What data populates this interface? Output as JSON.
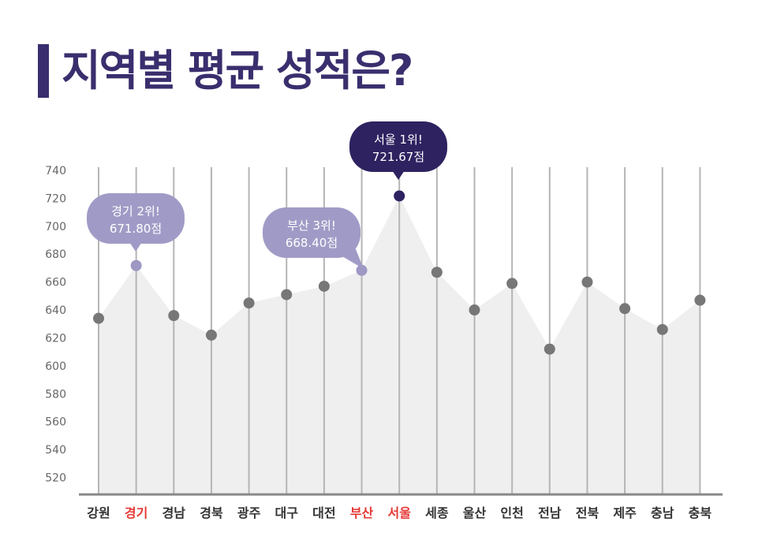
{
  "title": "지역별 평균 성적은?",
  "chart_data": {
    "type": "area",
    "title": "지역별 평균 성적은?",
    "xlabel": "",
    "ylabel": "",
    "ylim": [
      510,
      740
    ],
    "yticks": [
      740,
      720,
      700,
      680,
      660,
      640,
      620,
      600,
      580,
      560,
      540,
      520
    ],
    "categories": [
      "강원",
      "경기",
      "경남",
      "경북",
      "광주",
      "대구",
      "대전",
      "부산",
      "서울",
      "세종",
      "울산",
      "인천",
      "전남",
      "전북",
      "제주",
      "충남",
      "충북"
    ],
    "values": [
      634,
      671.8,
      636,
      622,
      645,
      651,
      657,
      668.4,
      721.67,
      667,
      640,
      659,
      612,
      660,
      641,
      626,
      647
    ],
    "highlighted_categories": [
      "경기",
      "부산",
      "서울"
    ],
    "annotations": [
      {
        "category": "서울",
        "line1": "서울 1위!",
        "line2": "721.67점"
      },
      {
        "category": "경기",
        "line1": "경기 2위!",
        "line2": "671.80점"
      },
      {
        "category": "부산",
        "line1": "부산 3위!",
        "line2": "668.40점"
      }
    ],
    "colors": {
      "area": "#efefef",
      "gridline": "#b5b5b5",
      "point": "#777777",
      "top_point": "#2e2260",
      "highlight_point": "#9d98c4",
      "top_bubble": "#2e2260",
      "highlight_bubble": "#a09bc6",
      "axis": "#888888",
      "label_normal": "#333333",
      "label_highlight": "#e53935"
    }
  }
}
